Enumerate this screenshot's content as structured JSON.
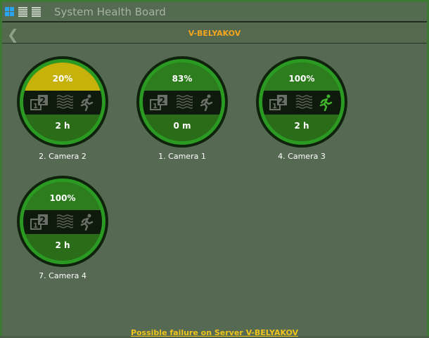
{
  "header": {
    "title": "System Health Board",
    "views": [
      "grid-view",
      "list-view",
      "detail-view"
    ],
    "active_view": "grid-view"
  },
  "subheader": {
    "server": "V-BELYAKOV"
  },
  "cameras": [
    {
      "label": "2. Camera 2",
      "percent": "20%",
      "duration": "2 h",
      "status": "warning",
      "motion_active": false
    },
    {
      "label": "1. Camera 1",
      "percent": "83%",
      "duration": "0 m",
      "status": "ok",
      "motion_active": false
    },
    {
      "label": "4. Camera 3",
      "percent": "100%",
      "duration": "2 h",
      "status": "ok",
      "motion_active": true
    },
    {
      "label": "7. Camera 4",
      "percent": "100%",
      "duration": "2 h",
      "status": "ok",
      "motion_active": false
    }
  ],
  "colors": {
    "warning": "#c7b20b",
    "ok": "#2d7c1d",
    "accent": "#f2a51e",
    "link": "#f0c419"
  },
  "footer": {
    "alert_link": "Possible failure on Server V-BELYAKOV"
  }
}
